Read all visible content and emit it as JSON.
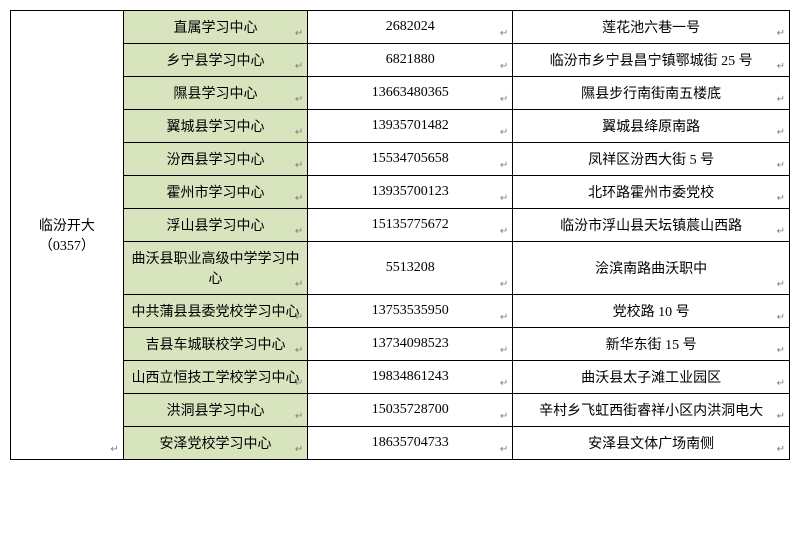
{
  "region": {
    "line1": "临汾开大",
    "line2": "（0357）"
  },
  "rows": [
    {
      "name": "直属学习中心",
      "phone": "2682024",
      "addr": "莲花池六巷一号"
    },
    {
      "name": "乡宁县学习中心",
      "phone": "6821880",
      "addr": "临汾市乡宁县昌宁镇鄂城街 25 号"
    },
    {
      "name": "隰县学习中心",
      "phone": "13663480365",
      "addr": "隰县步行南街南五楼底"
    },
    {
      "name": "翼城县学习中心",
      "phone": "13935701482",
      "addr": "翼城县绛原南路"
    },
    {
      "name": "汾西县学习中心",
      "phone": "15534705658",
      "addr": "凤祥区汾西大街 5 号"
    },
    {
      "name": "霍州市学习中心",
      "phone": "13935700123",
      "addr": "北环路霍州市委党校"
    },
    {
      "name": "浮山县学习中心",
      "phone": "15135775672",
      "addr": "临汾市浮山县天坛镇莀山西路"
    },
    {
      "name": "曲沃县职业高级中学学习中心",
      "phone": "5513208",
      "addr": "浍滨南路曲沃职中"
    },
    {
      "name": "中共蒲县县委党校学习中心",
      "phone": "13753535950",
      "addr": "党校路 10 号"
    },
    {
      "name": "吉县车城联校学习中心",
      "phone": "13734098523",
      "addr": "新华东街 15 号"
    },
    {
      "name": "山西立恒技工学校学习中心",
      "phone": "19834861243",
      "addr": "曲沃县太子滩工业园区"
    },
    {
      "name": "洪洞县学习中心",
      "phone": "15035728700",
      "addr": "辛村乡飞虹西街睿祥小区内洪洞电大"
    },
    {
      "name": "安泽党校学习中心",
      "phone": "18635704733",
      "addr": "安泽县文体广场南侧"
    }
  ],
  "style": {
    "name_col_bg": "#d7e4bd",
    "border_color": "#000000",
    "font_family": "SimSun",
    "font_size_pt": 10.5
  }
}
